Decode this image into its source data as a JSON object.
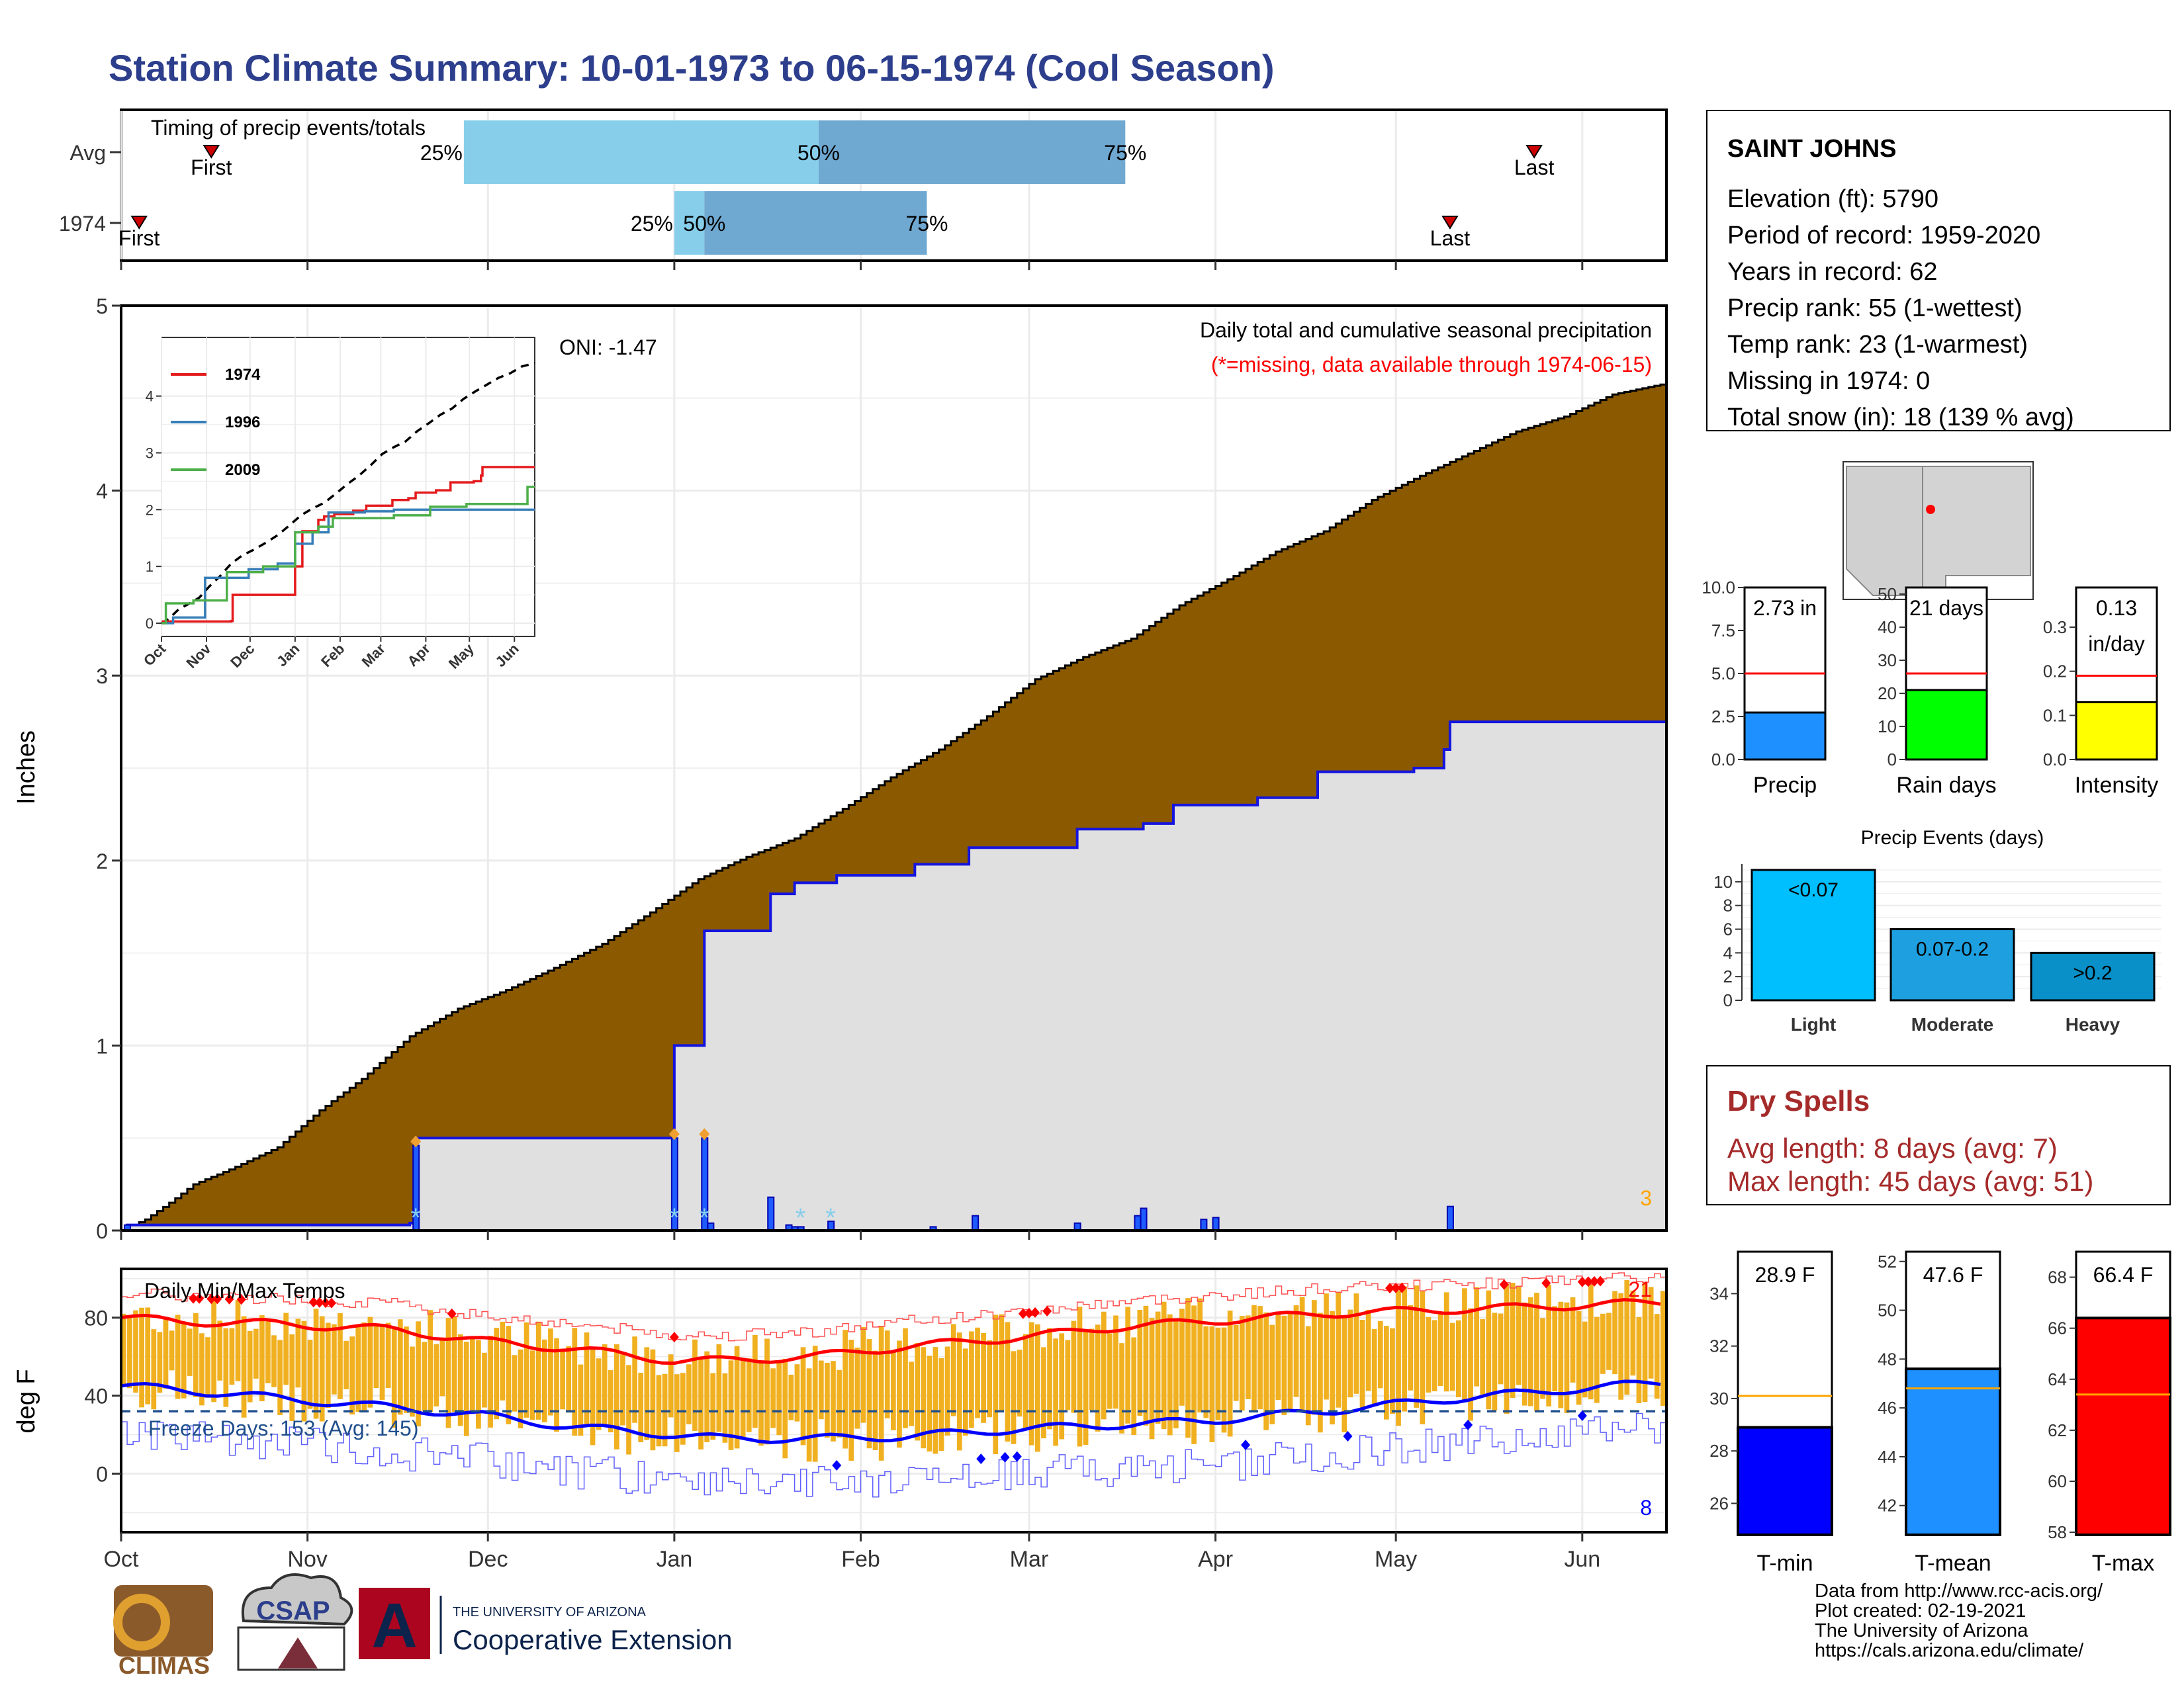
{
  "title": "Station Climate Summary: 10-01-1973 to 06-15-1974 (Cool Season)",
  "colors": {
    "title": "#2c3e8c",
    "accumulated_fill": "#8b5a00",
    "year_fill": "#e0e0e0",
    "precip_line": "#1414e0",
    "temp_bar": "#f0b020",
    "tmax_line": "#ff0000",
    "tmin_line": "#0000ff",
    "freeze_line": "#1f4e8c",
    "dry_spells": "#a52a2a",
    "timing_q1": "#87ceeb",
    "timing_q2": "#6fa8d0",
    "missing_note": "#ff0000"
  },
  "station": {
    "name": "SAINT JOHNS",
    "lines": [
      "Elevation (ft): 5790",
      "Period of record: 1959-2020",
      "Years in record: 62",
      "Precip rank: 55 (1-wettest)",
      "Temp rank: 23 (1-warmest)",
      "Missing in 1974: 0",
      "Total snow (in): 18 (139 % avg)"
    ]
  },
  "timing": {
    "title": "Timing of precip events/totals",
    "rows": [
      {
        "label": "Avg",
        "first_day": 15,
        "p25_day": 57,
        "p50_day": 116,
        "p75_day": 167,
        "last_day": 235,
        "first_label": "First",
        "p25_label": "25%",
        "p50_label": "50%",
        "p75_label": "75%",
        "last_label": "Last"
      },
      {
        "label": "1974",
        "first_day": 3,
        "p25_day": 92,
        "p50_day": 97,
        "p75_day": 134,
        "last_day": 221,
        "first_label": "First",
        "p25_label": "25%",
        "p50_label": "50%",
        "p75_label": "75%",
        "last_label": "Last"
      }
    ]
  },
  "main": {
    "ylabel": "Inches",
    "yticks": [
      "0",
      "1",
      "2",
      "3",
      "4",
      "5"
    ],
    "ymax": 5,
    "oni": "ONI: -1.47",
    "legend_title": "Daily total and cumulative seasonal precipitation",
    "missing_note": "(*=missing, data available through 1974-06-15)",
    "corner_number": "3",
    "cum_avg_points": [
      [
        0,
        0
      ],
      [
        4,
        0.06
      ],
      [
        8,
        0.15
      ],
      [
        12,
        0.25
      ],
      [
        18,
        0.33
      ],
      [
        26,
        0.45
      ],
      [
        33,
        0.65
      ],
      [
        40,
        0.82
      ],
      [
        48,
        1.05
      ],
      [
        56,
        1.2
      ],
      [
        64,
        1.3
      ],
      [
        72,
        1.42
      ],
      [
        80,
        1.55
      ],
      [
        88,
        1.72
      ],
      [
        96,
        1.9
      ],
      [
        104,
        2.02
      ],
      [
        112,
        2.12
      ],
      [
        120,
        2.28
      ],
      [
        128,
        2.45
      ],
      [
        136,
        2.6
      ],
      [
        144,
        2.78
      ],
      [
        152,
        2.98
      ],
      [
        160,
        3.1
      ],
      [
        168,
        3.2
      ],
      [
        176,
        3.38
      ],
      [
        184,
        3.52
      ],
      [
        192,
        3.67
      ],
      [
        200,
        3.78
      ],
      [
        208,
        3.95
      ],
      [
        216,
        4.08
      ],
      [
        224,
        4.2
      ],
      [
        232,
        4.32
      ],
      [
        240,
        4.4
      ],
      [
        248,
        4.52
      ],
      [
        257,
        4.58
      ]
    ],
    "cum_year_points": [
      [
        0,
        0
      ],
      [
        1,
        0.03
      ],
      [
        48,
        0.04
      ],
      [
        49,
        0.5
      ],
      [
        92,
        0.5
      ],
      [
        92,
        1.0
      ],
      [
        96,
        1.0
      ],
      [
        97,
        1.62
      ],
      [
        107,
        1.62
      ],
      [
        108,
        1.82
      ],
      [
        112,
        1.88
      ],
      [
        119,
        1.92
      ],
      [
        132,
        1.98
      ],
      [
        141,
        2.07
      ],
      [
        159,
        2.17
      ],
      [
        170,
        2.2
      ],
      [
        175,
        2.3
      ],
      [
        189,
        2.34
      ],
      [
        199,
        2.48
      ],
      [
        215,
        2.5
      ],
      [
        220,
        2.6
      ],
      [
        221,
        2.75
      ],
      [
        257,
        2.75
      ]
    ],
    "daily_bars": [
      [
        1,
        0.03
      ],
      [
        49,
        0.46
      ],
      [
        92,
        0.5
      ],
      [
        97,
        0.5
      ],
      [
        98,
        0.04
      ],
      [
        108,
        0.18
      ],
      [
        111,
        0.03
      ],
      [
        112,
        0.02
      ],
      [
        113,
        0.02
      ],
      [
        118,
        0.05
      ],
      [
        135,
        0.02
      ],
      [
        142,
        0.08
      ],
      [
        159,
        0.04
      ],
      [
        169,
        0.08
      ],
      [
        170,
        0.12
      ],
      [
        180,
        0.06
      ],
      [
        182,
        0.07
      ],
      [
        221,
        0.13
      ]
    ],
    "missing_days": [
      49,
      92,
      97,
      113,
      118
    ],
    "diamond_days": [
      49,
      92,
      97
    ],
    "inset": {
      "yticks": [
        "0",
        "1",
        "2",
        "3",
        "4"
      ],
      "xticks": [
        "Oct",
        "Nov",
        "Dec",
        "Jan",
        "Feb",
        "Mar",
        "Apr",
        "May",
        "Jun"
      ],
      "series": [
        {
          "name": "1974",
          "color": "#e41a1c",
          "points": [
            [
              0,
              0
            ],
            [
              1,
              0.03
            ],
            [
              48,
              0.04
            ],
            [
              49,
              0.5
            ],
            [
              92,
              0.5
            ],
            [
              92,
              1.0
            ],
            [
              96,
              1.0
            ],
            [
              97,
              1.62
            ],
            [
              107,
              1.62
            ],
            [
              108,
              1.82
            ],
            [
              112,
              1.88
            ],
            [
              119,
              1.92
            ],
            [
              132,
              1.98
            ],
            [
              141,
              2.07
            ],
            [
              159,
              2.17
            ],
            [
              170,
              2.2
            ],
            [
              175,
              2.3
            ],
            [
              189,
              2.34
            ],
            [
              199,
              2.48
            ],
            [
              215,
              2.5
            ],
            [
              220,
              2.6
            ],
            [
              221,
              2.75
            ],
            [
              257,
              2.75
            ]
          ]
        },
        {
          "name": "1996",
          "color": "#377eb8",
          "points": [
            [
              0,
              0
            ],
            [
              8,
              0.1
            ],
            [
              30,
              0.8
            ],
            [
              60,
              0.95
            ],
            [
              80,
              1.05
            ],
            [
              92,
              1.4
            ],
            [
              104,
              1.6
            ],
            [
              115,
              1.95
            ],
            [
              140,
              1.97
            ],
            [
              160,
              2.0
            ],
            [
              200,
              2.0
            ],
            [
              257,
              2.0
            ]
          ]
        },
        {
          "name": "2009",
          "color": "#4daf4a",
          "points": [
            [
              0,
              0
            ],
            [
              3,
              0.35
            ],
            [
              22,
              0.4
            ],
            [
              45,
              0.9
            ],
            [
              70,
              1.0
            ],
            [
              92,
              1.6
            ],
            [
              108,
              1.7
            ],
            [
              118,
              1.85
            ],
            [
              160,
              1.9
            ],
            [
              185,
              2.05
            ],
            [
              210,
              2.1
            ],
            [
              250,
              2.1
            ],
            [
              252,
              2.4
            ],
            [
              257,
              2.4
            ]
          ]
        }
      ]
    }
  },
  "temps": {
    "title": "Daily Min/Max Temps",
    "ylabel": "deg F",
    "yticks": [
      "0",
      "40",
      "80"
    ],
    "freeze_label": "Freeze Days: 153 (Avg: 145)",
    "freeze_temp": 32,
    "corner_max": "21",
    "corner_min": "8",
    "max_avg_points": [
      [
        0,
        80
      ],
      [
        10,
        78
      ],
      [
        25,
        77
      ],
      [
        45,
        74
      ],
      [
        60,
        68
      ],
      [
        75,
        64
      ],
      [
        92,
        58
      ],
      [
        100,
        58
      ],
      [
        115,
        60
      ],
      [
        130,
        65
      ],
      [
        150,
        70
      ],
      [
        165,
        75
      ],
      [
        180,
        78
      ],
      [
        200,
        82
      ],
      [
        220,
        84
      ],
      [
        240,
        86
      ],
      [
        257,
        88
      ]
    ],
    "min_avg_points": [
      [
        0,
        45
      ],
      [
        10,
        43
      ],
      [
        25,
        39
      ],
      [
        45,
        34
      ],
      [
        60,
        30
      ],
      [
        75,
        24
      ],
      [
        92,
        20
      ],
      [
        100,
        18
      ],
      [
        115,
        18
      ],
      [
        130,
        19
      ],
      [
        150,
        23
      ],
      [
        165,
        25
      ],
      [
        180,
        27
      ],
      [
        200,
        32
      ],
      [
        220,
        38
      ],
      [
        240,
        43
      ],
      [
        257,
        47
      ]
    ],
    "x_months": [
      "Oct",
      "Nov",
      "Dec",
      "Jan",
      "Feb",
      "Mar",
      "Apr",
      "May",
      "Jun"
    ]
  },
  "small_bars": [
    {
      "label": "Precip",
      "value": 2.73,
      "avg": 5.0,
      "text": "2.73 in",
      "ymax": 10,
      "ticks": [
        "0.0",
        "2.5",
        "5.0",
        "7.5",
        "10.0"
      ],
      "color": "#1e90ff"
    },
    {
      "label": "Rain days",
      "value": 21,
      "avg": 26,
      "text": "21 days",
      "ymax": 52,
      "ticks": [
        "0",
        "10",
        "20",
        "30",
        "40",
        "50"
      ],
      "color": "#00ff00"
    },
    {
      "label": "Intensity",
      "value": 0.13,
      "avg": 0.19,
      "text": "0.13\nin/day",
      "ymax": 0.39,
      "ticks": [
        "0.0",
        "0.1",
        "0.2",
        "0.3"
      ],
      "color": "#ffff00"
    }
  ],
  "events": {
    "title": "Precip Events (days)",
    "ticks": [
      "0",
      "2",
      "4",
      "6",
      "8",
      "10"
    ],
    "ymax": 11.5,
    "bars": [
      {
        "category": "Light",
        "label": "<0.07",
        "value": 11,
        "color": "#00bfff"
      },
      {
        "category": "Moderate",
        "label": "0.07-0.2",
        "value": 6,
        "color": "#1ea0e0"
      },
      {
        "category": "Heavy",
        "label": ">0.2",
        "value": 4,
        "color": "#0a90c8"
      }
    ]
  },
  "dry_spells": {
    "title": "Dry Spells",
    "avg_line": "Avg length: 8 days (avg: 7)",
    "max_line": "Max length: 45 days (avg: 51)"
  },
  "temp_bars": [
    {
      "label": "T-min",
      "value": 28.9,
      "avg": 30.1,
      "text": "28.9 F",
      "ymin": 24.8,
      "ymax": 35.6,
      "ticks": [
        "26",
        "28",
        "30",
        "32",
        "34"
      ],
      "color": "#0000ff"
    },
    {
      "label": "T-mean",
      "value": 47.6,
      "avg": 46.8,
      "text": "47.6 F",
      "ymin": 40.8,
      "ymax": 52.4,
      "ticks": [
        "42",
        "44",
        "46",
        "48",
        "50",
        "52"
      ],
      "color": "#1e90ff"
    },
    {
      "label": "T-max",
      "value": 66.4,
      "avg": 63.4,
      "text": "66.4 F",
      "ymin": 57.9,
      "ymax": 69.0,
      "ticks": [
        "58",
        "60",
        "62",
        "64",
        "66",
        "68"
      ],
      "color": "#ff0000"
    }
  ],
  "footer": {
    "lines": [
      "Data from http://www.rcc-acis.org/",
      "Plot created: 02-19-2021",
      "The University of Arizona",
      "https://cals.arizona.edu/climate/"
    ],
    "climas_label": "CLIMAS",
    "csap_label": "CSAP",
    "ua_small": "THE UNIVERSITY OF ARIZONA",
    "ua_big": "Cooperative Extension"
  }
}
